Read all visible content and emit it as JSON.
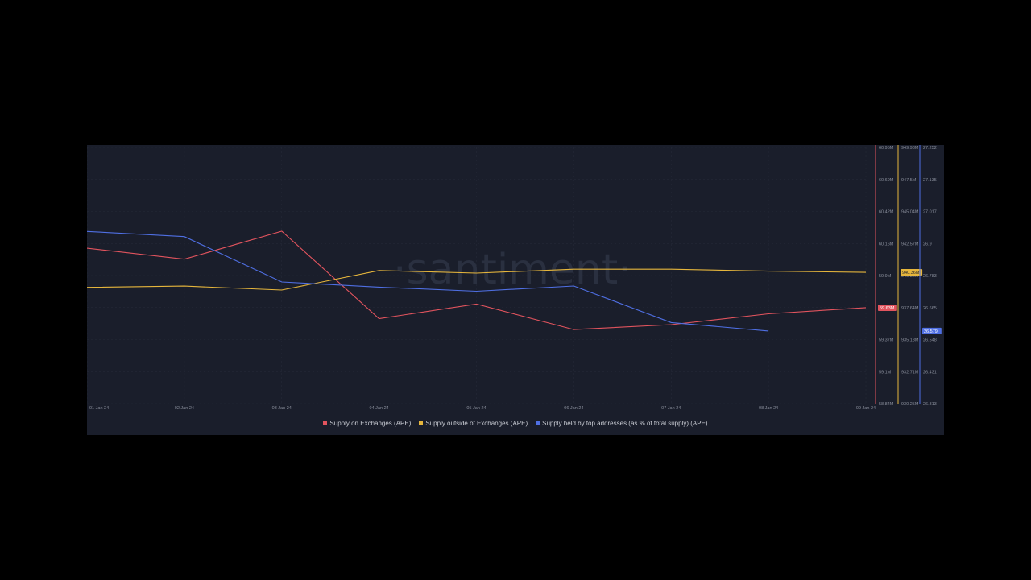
{
  "watermark": "·santiment·",
  "chart_data": {
    "type": "line",
    "categories": [
      "01 Jan 24",
      "02 Jan 24",
      "03 Jan 24",
      "04 Jan 24",
      "05 Jan 24",
      "06 Jan 24",
      "07 Jan 24",
      "08 Jan 24",
      "09 Jan 24"
    ],
    "series": [
      {
        "name": "Supply on Exchanges (APE)",
        "color": "#e2545e",
        "axis": 0,
        "values": [
          60.12,
          60.03,
          60.26,
          59.54,
          59.66,
          59.45,
          59.49,
          59.58,
          59.63
        ]
      },
      {
        "name": "Supply outside of Exchanges (APE)",
        "color": "#e6b63c",
        "axis": 1,
        "values": [
          939.2,
          939.3,
          939.0,
          940.5,
          940.3,
          940.6,
          940.6,
          940.45,
          940.36
        ]
      },
      {
        "name": "Supply held by top addresses (as % of total supply) (APE)",
        "color": "#4f6fe3",
        "axis": 2,
        "values": [
          26.944,
          26.925,
          26.759,
          26.74,
          26.725,
          26.744,
          26.61,
          26.579,
          null
        ]
      }
    ],
    "axes": [
      {
        "color": "#e2545e",
        "ylim": [
          58.84,
          60.95
        ],
        "ticks": [
          "60.95M",
          "60.69M",
          "60.42M",
          "60.16M",
          "59.9M",
          "59.63M",
          "59.37M",
          "59.1M",
          "58.84M"
        ],
        "badge": "59.63M"
      },
      {
        "color": "#e6b63c",
        "ylim": [
          930.25,
          949.98
        ],
        "ticks": [
          "949.98M",
          "947.5M",
          "945.04M",
          "942.57M",
          "940.36M",
          "937.64M",
          "935.18M",
          "932.71M",
          "930.25M"
        ],
        "badge": "940.36M"
      },
      {
        "color": "#4f6fe3",
        "ylim": [
          26.313,
          27.252
        ],
        "ticks": [
          "27.252",
          "27.135",
          "27.017",
          "26.9",
          "26.783",
          "26.665",
          "26.548",
          "26.431",
          "26.313"
        ],
        "badge": "26.579"
      }
    ],
    "grid": true,
    "legend_position": "bottom-center"
  }
}
